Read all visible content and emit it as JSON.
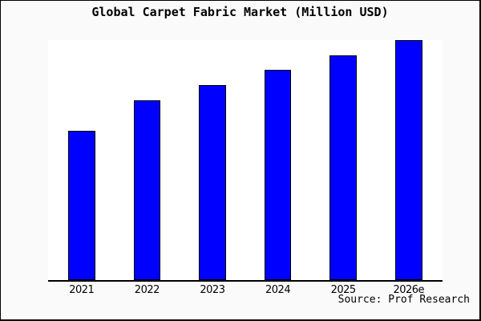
{
  "chart_data": {
    "type": "bar",
    "title": "Global Carpet Fabric Market (Million USD)",
    "categories": [
      "2021",
      "2022",
      "2023",
      "2024",
      "2025",
      "2026e"
    ],
    "values": [
      62.3,
      75.0,
      81.3,
      87.7,
      93.7,
      100.0
    ],
    "values_note": "relative index estimated from bar heights; 2026e = 100; no y-axis ticks shown in chart",
    "xlabel": "",
    "ylabel": "",
    "ylim": [
      0,
      100
    ],
    "grid": false,
    "legend": false,
    "bar_color": "#0000ff",
    "bar_border_color": "#000000",
    "source_note": "Source: Prof Research"
  },
  "colors": {
    "frame_background": "#fafafa",
    "plot_background": "#ffffff",
    "axis": "#000000",
    "text": "#000000"
  }
}
